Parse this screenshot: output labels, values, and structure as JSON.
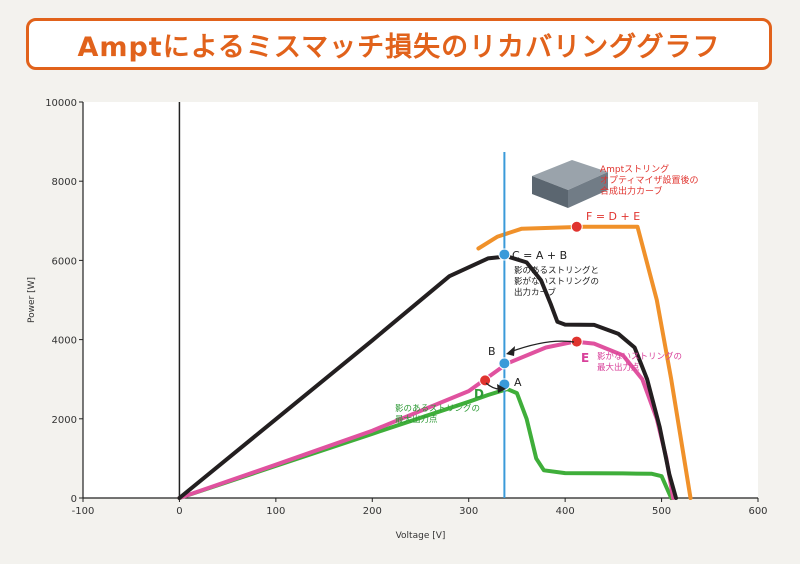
{
  "title": "Amptによるミスマッチ損失のリカバリンググラフ",
  "chart_data": {
    "type": "line",
    "xlabel": "Voltage [V]",
    "ylabel": "Power [W]",
    "xlim": [
      -100,
      600
    ],
    "ylim": [
      0,
      10000
    ],
    "x_ticks": [
      -100,
      0,
      100,
      200,
      300,
      400,
      500,
      600
    ],
    "y_ticks": [
      0,
      2000,
      4000,
      6000,
      8000,
      10000
    ],
    "grid": false,
    "colors": {
      "green": "#3fae3a",
      "pink": "#e0529f",
      "black": "#231f20",
      "orange": "#f0912a",
      "vline": "#3a9ad9",
      "marker_red": "#e0342f",
      "marker_blue": "#3a9ad9",
      "label_red": "#e0342f",
      "label_green": "#2e9a36",
      "label_pink": "#d8419a"
    },
    "series": [
      {
        "color_key": "green",
        "points": [
          [
            0,
            0
          ],
          [
            100,
            810
          ],
          [
            200,
            1620
          ],
          [
            300,
            2430
          ],
          [
            320,
            2600
          ],
          [
            340,
            2750
          ],
          [
            350,
            2650
          ],
          [
            360,
            2000
          ],
          [
            370,
            1000
          ],
          [
            378,
            700
          ],
          [
            400,
            630
          ],
          [
            460,
            620
          ],
          [
            490,
            610
          ],
          [
            500,
            550
          ],
          [
            510,
            0
          ]
        ]
      },
      {
        "color_key": "pink",
        "points": [
          [
            0,
            0
          ],
          [
            100,
            840
          ],
          [
            200,
            1700
          ],
          [
            300,
            2700
          ],
          [
            340,
            3400
          ],
          [
            380,
            3800
          ],
          [
            410,
            3950
          ],
          [
            430,
            3900
          ],
          [
            460,
            3600
          ],
          [
            480,
            3000
          ],
          [
            495,
            2000
          ],
          [
            505,
            1000
          ],
          [
            512,
            0
          ]
        ]
      },
      {
        "color_key": "black",
        "points": [
          [
            0,
            0
          ],
          [
            100,
            1990
          ],
          [
            200,
            3980
          ],
          [
            280,
            5600
          ],
          [
            320,
            6050
          ],
          [
            340,
            6100
          ],
          [
            360,
            5950
          ],
          [
            375,
            5500
          ],
          [
            385,
            4900
          ],
          [
            392,
            4450
          ],
          [
            400,
            4380
          ],
          [
            430,
            4370
          ],
          [
            455,
            4150
          ],
          [
            472,
            3800
          ],
          [
            485,
            3000
          ],
          [
            498,
            1800
          ],
          [
            508,
            600
          ],
          [
            515,
            0
          ]
        ]
      },
      {
        "color_key": "orange",
        "points": [
          [
            310,
            6300
          ],
          [
            330,
            6600
          ],
          [
            355,
            6800
          ],
          [
            420,
            6850
          ],
          [
            475,
            6850
          ],
          [
            495,
            5000
          ],
          [
            510,
            3000
          ],
          [
            522,
            1200
          ],
          [
            530,
            0
          ]
        ]
      }
    ],
    "vertical_line_x": 337,
    "markers": [
      {
        "label": "A",
        "x": 337,
        "y": 2870,
        "color_key": "marker_blue"
      },
      {
        "label": "B",
        "x": 337,
        "y": 3400,
        "color_key": "marker_blue"
      },
      {
        "label": "C",
        "x": 337,
        "y": 6150,
        "color_key": "marker_blue"
      },
      {
        "label": "D",
        "x": 317,
        "y": 2970,
        "color_key": "marker_red"
      },
      {
        "label": "E",
        "x": 412,
        "y": 3950,
        "color_key": "marker_red"
      },
      {
        "label": "F",
        "x": 412,
        "y": 6850,
        "color_key": "marker_red"
      }
    ],
    "annotations": {
      "F_eq": "F = D + E",
      "C_eq": "C = A + B",
      "black_caption": [
        "影のあるストリングと",
        "影がないストリングの",
        "出力カーブ"
      ],
      "orange_caption": [
        "Amptストリング",
        "オプティマイザ設置後の",
        "合成出力カーブ"
      ],
      "pink_caption": [
        "影がないストリングの",
        "最大出力点"
      ],
      "green_caption": [
        "影のあるストリングの",
        "最大出力点"
      ],
      "letter_A": "A",
      "letter_B": "B",
      "letter_D": "D",
      "letter_E": "E"
    }
  }
}
